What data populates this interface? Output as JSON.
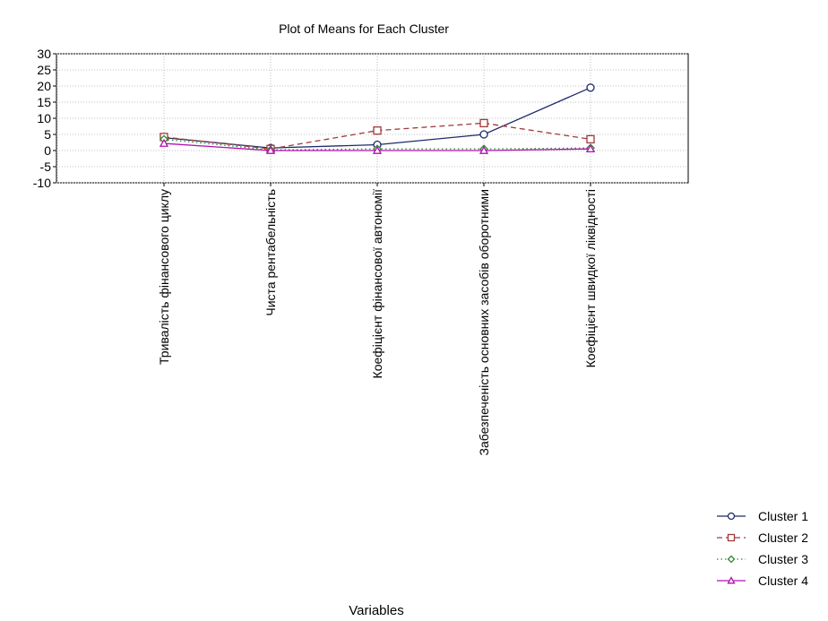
{
  "chart_data": {
    "type": "line",
    "title": "Plot of Means for Each Cluster",
    "xlabel": "Variables",
    "ylabel": "",
    "ylim": [
      -10,
      30
    ],
    "yticks": [
      30,
      25,
      20,
      15,
      10,
      5,
      0,
      -5,
      -10
    ],
    "grid": true,
    "legend": "bottom-right",
    "categories": [
      "Тривалість фінансового циклу",
      "Чиста рентабельність",
      "Коефіцієнт фінансової автономії",
      "Забезпеченість основних засобів оборотними",
      "Коефіцієнт швидкої ліквідності"
    ],
    "series": [
      {
        "name": "Cluster  1",
        "values": [
          4,
          0.8,
          1.8,
          5,
          19.5
        ],
        "color": "#1f2a6b",
        "marker": "circle",
        "dash": "solid"
      },
      {
        "name": "Cluster  2",
        "values": [
          4.2,
          0.5,
          6.2,
          8.5,
          3.5
        ],
        "color": "#a03a3a",
        "marker": "square",
        "dash": "dashed"
      },
      {
        "name": "Cluster  3",
        "values": [
          3.5,
          0.2,
          0.5,
          0.5,
          0.8
        ],
        "color": "#2e8b2e",
        "marker": "diamond",
        "dash": "dotted"
      },
      {
        "name": "Cluster  4",
        "values": [
          2.2,
          0,
          0,
          0,
          0.5
        ],
        "color": "#b012b0",
        "marker": "triangle",
        "dash": "solid"
      }
    ]
  }
}
